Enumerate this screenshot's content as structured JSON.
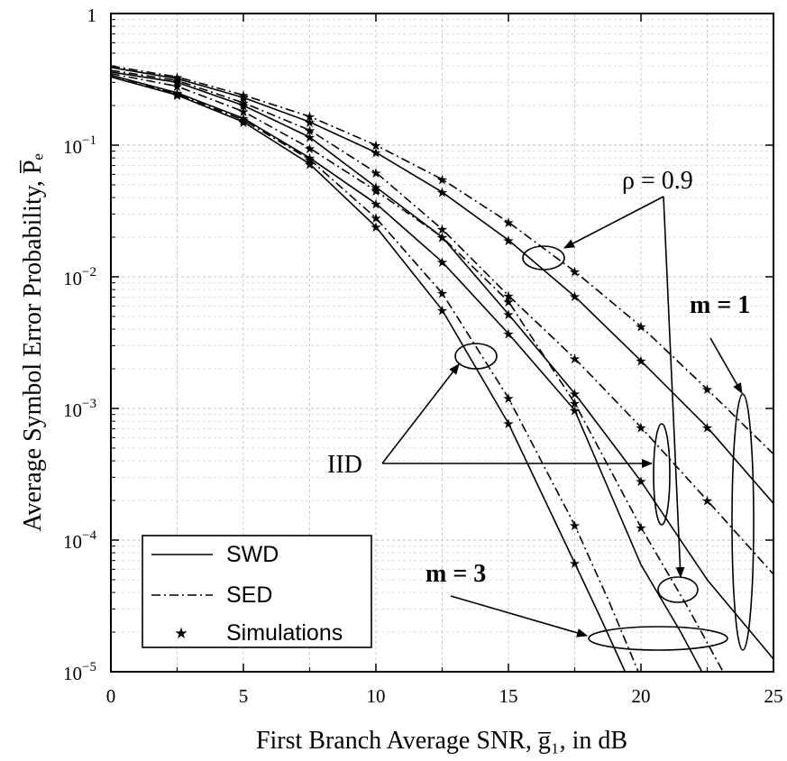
{
  "chart_data": {
    "type": "line",
    "xlabel": "First Branch Average SNR, g̅₁, in dB",
    "ylabel": "Average Symbol Error Probability, P̅ₑ",
    "xlim": [
      0,
      25
    ],
    "ylim": [
      1e-05,
      1
    ],
    "yscale": "log",
    "grid": true,
    "x_ticks": [
      "0",
      "5",
      "10",
      "15",
      "20",
      "25"
    ],
    "y_ticks": [
      {
        "base": "10",
        "exp": "−5",
        "value": 1e-05
      },
      {
        "base": "10",
        "exp": "−4",
        "value": 0.0001
      },
      {
        "base": "10",
        "exp": "−3",
        "value": 0.001
      },
      {
        "base": "10",
        "exp": "−2",
        "value": 0.01
      },
      {
        "base": "10",
        "exp": "−1",
        "value": 0.1
      },
      {
        "base": "1",
        "exp": "",
        "value": 1
      }
    ],
    "legend": {
      "position": "bottom-left",
      "entries": [
        {
          "label": "SWD",
          "style": "solid"
        },
        {
          "label": "SED",
          "style": "dashdot"
        },
        {
          "label": "Simulations",
          "style": "star"
        }
      ]
    },
    "annotations": {
      "rho_label": "ρ = 0.9",
      "iid_label": "IID",
      "m1_label": "m = 1",
      "m3_label": "m = 3"
    },
    "series": [
      {
        "style": "dashdot",
        "x": [
          0,
          2.5,
          5,
          7.5,
          10,
          12.5,
          15,
          17.5,
          20,
          22.5,
          25
        ],
        "y": [
          0.4,
          0.33,
          0.24,
          0.165,
          0.1,
          0.055,
          0.026,
          0.011,
          0.0042,
          0.0014,
          0.00045
        ]
      },
      {
        "style": "solid",
        "x": [
          0,
          2.5,
          5,
          7.5,
          10,
          12.5,
          15,
          17.5,
          20,
          22.5,
          25
        ],
        "y": [
          0.39,
          0.32,
          0.23,
          0.15,
          0.088,
          0.044,
          0.019,
          0.0071,
          0.0023,
          0.00072,
          0.00019
        ]
      },
      {
        "style": "dashdot",
        "x": [
          0,
          2.5,
          5,
          7.5,
          10,
          12.5,
          15,
          17.5,
          20,
          22.5,
          25
        ],
        "y": [
          0.37,
          0.31,
          0.21,
          0.13,
          0.062,
          0.023,
          0.0072,
          0.0024,
          0.00072,
          0.0002,
          5.5e-05
        ]
      },
      {
        "style": "solid",
        "x": [
          0,
          2.5,
          5,
          7.5,
          10,
          12.5,
          15,
          17.5,
          20,
          22.5,
          25
        ],
        "y": [
          0.36,
          0.3,
          0.2,
          0.115,
          0.048,
          0.02,
          0.0052,
          0.0013,
          0.00028,
          5e-05,
          1.25e-05
        ]
      },
      {
        "style": "dashdot",
        "x": [
          0,
          2.5,
          5,
          7.5,
          10,
          12.5,
          15,
          17.5,
          20,
          21.8,
          23.1
        ],
        "y": [
          0.35,
          0.28,
          0.18,
          0.095,
          0.045,
          0.02,
          0.0065,
          0.0011,
          0.000125,
          3e-05,
          1e-05
        ]
      },
      {
        "style": "solid",
        "x": [
          0,
          2.5,
          5,
          7.5,
          10,
          12.5,
          15,
          17.5,
          20,
          21.5,
          22.3
        ],
        "y": [
          0.34,
          0.25,
          0.16,
          0.08,
          0.036,
          0.013,
          0.0037,
          0.00097,
          6.5e-05,
          2e-05,
          1e-05
        ]
      },
      {
        "style": "dashdot",
        "x": [
          0,
          2.5,
          5,
          7.5,
          10,
          12.5,
          15,
          17.5,
          18.8,
          19.9
        ],
        "y": [
          0.34,
          0.245,
          0.155,
          0.078,
          0.028,
          0.0075,
          0.0012,
          0.00013,
          3.4e-05,
          1e-05
        ]
      },
      {
        "style": "solid",
        "x": [
          0,
          2.5,
          5,
          7.5,
          10,
          12.5,
          15,
          17.5,
          18.5,
          19.4
        ],
        "y": [
          0.33,
          0.24,
          0.15,
          0.072,
          0.024,
          0.0056,
          0.00077,
          6.7e-05,
          2.5e-05,
          1e-05
        ]
      }
    ],
    "simulation_points": {
      "x": [
        2.5,
        5,
        7.5,
        10,
        12.5,
        15,
        17.5,
        20,
        22.5
      ],
      "y_by_series": [
        [
          0.33,
          0.24,
          0.165,
          0.1,
          0.055,
          0.026,
          0.011,
          0.0042,
          0.0014
        ],
        [
          0.32,
          0.23,
          0.15,
          0.088,
          0.044,
          0.019,
          0.0071,
          0.0023,
          0.00072
        ],
        [
          0.31,
          0.21,
          0.13,
          0.062,
          0.023,
          0.0072,
          0.0024,
          0.00072,
          0.0002
        ],
        [
          0.3,
          0.2,
          0.115,
          0.048,
          0.02,
          0.0052,
          0.0013,
          0.00028
        ],
        [
          0.28,
          0.18,
          0.095,
          0.045,
          0.02,
          0.0065,
          0.0011,
          0.000125
        ],
        [
          0.25,
          0.16,
          0.08,
          0.036,
          0.013,
          0.0037,
          0.00097
        ],
        [
          0.245,
          0.155,
          0.078,
          0.028,
          0.0075,
          0.0012,
          0.00013
        ],
        [
          0.24,
          0.15,
          0.072,
          0.024,
          0.0056,
          0.00077,
          6.7e-05
        ]
      ]
    }
  }
}
